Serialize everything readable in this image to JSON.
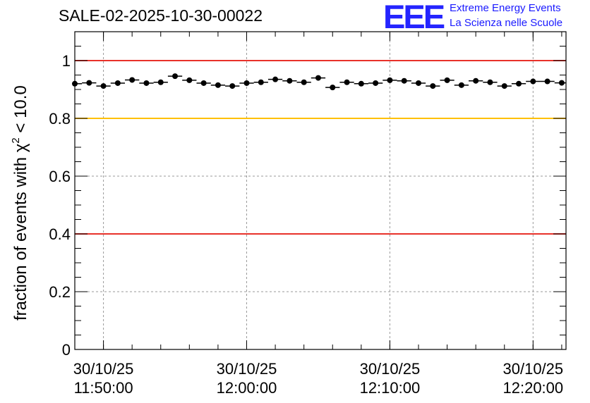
{
  "chart_data": {
    "type": "scatter",
    "title": "SALE-02-2025-10-30-00022",
    "ylabel_prefix": "fraction of events with ",
    "ylabel_chi": "χ",
    "ylabel_exp": "2",
    "ylabel_suffix": " < 10.0",
    "ylim": [
      0,
      1.1
    ],
    "yticks": [
      {
        "value": 0,
        "label": "0"
      },
      {
        "value": 0.2,
        "label": "0.2"
      },
      {
        "value": 0.4,
        "label": "0.4"
      },
      {
        "value": 0.6,
        "label": "0.6"
      },
      {
        "value": 0.8,
        "label": "0.8"
      },
      {
        "value": 1.0,
        "label": "1"
      }
    ],
    "xlim_minutes": [
      -2.0,
      32.3
    ],
    "xticks": [
      {
        "minute": 0,
        "date": "30/10/25",
        "time": "11:50:00"
      },
      {
        "minute": 10,
        "date": "30/10/25",
        "time": "12:00:00"
      },
      {
        "minute": 20,
        "date": "30/10/25",
        "time": "12:10:00"
      },
      {
        "minute": 30,
        "date": "30/10/25",
        "time": "12:20:00"
      }
    ],
    "reference_lines": [
      {
        "value": 1.0,
        "color": "#e8322a"
      },
      {
        "value": 0.8,
        "color": "#ffc000"
      },
      {
        "value": 0.4,
        "color": "#e8322a"
      }
    ],
    "bin_width_minutes": 1.0,
    "x_minutes": [
      -2.0,
      -1.0,
      0.0,
      1.0,
      2.0,
      3.0,
      4.0,
      5.0,
      6.0,
      7.0,
      8.0,
      9.0,
      10.0,
      11.0,
      12.0,
      13.0,
      14.0,
      15.0,
      16.0,
      17.0,
      18.0,
      19.0,
      20.0,
      21.0,
      22.0,
      23.0,
      24.0,
      25.0,
      26.0,
      27.0,
      28.0,
      29.0,
      30.0,
      31.0,
      32.0
    ],
    "values": [
      0.92,
      0.923,
      0.912,
      0.922,
      0.933,
      0.922,
      0.925,
      0.946,
      0.932,
      0.922,
      0.915,
      0.912,
      0.922,
      0.925,
      0.935,
      0.93,
      0.925,
      0.94,
      0.907,
      0.925,
      0.92,
      0.922,
      0.932,
      0.93,
      0.922,
      0.912,
      0.932,
      0.915,
      0.93,
      0.925,
      0.912,
      0.92,
      0.928,
      0.928,
      0.923
    ]
  },
  "logo": {
    "text": "EEE",
    "line1": "Extreme Energy Events",
    "line2": "La Scienza nelle Scuole"
  },
  "colors": {
    "marker": "#000000",
    "logo": "#2424ff"
  }
}
